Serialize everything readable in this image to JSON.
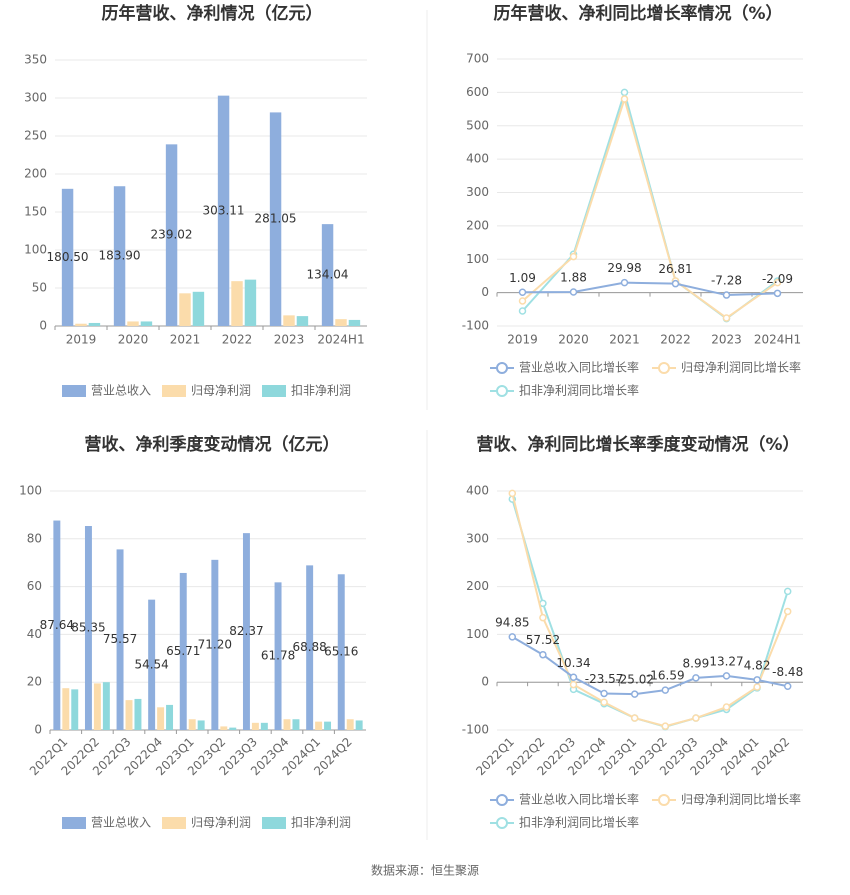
{
  "chart_data": [
    {
      "type": "bar",
      "title": "历年营收、净利情况（亿元）",
      "categories": [
        "2019",
        "2020",
        "2021",
        "2022",
        "2023",
        "2024H1"
      ],
      "series": [
        {
          "name": "营业总收入",
          "color": "#8eaedd",
          "values": [
            180.5,
            183.9,
            239.02,
            303.11,
            281.05,
            134.04
          ],
          "value_labels": [
            "180.50",
            "183.90",
            "239.02",
            "303.11",
            "281.05",
            "134.04"
          ]
        },
        {
          "name": "归母净利润",
          "color": "#fbdcab",
          "values": [
            3,
            6,
            43,
            59,
            14,
            9
          ]
        },
        {
          "name": "扣非净利润",
          "color": "#8ed8dc",
          "values": [
            4,
            6,
            45,
            61,
            13,
            8
          ]
        }
      ],
      "ylim": [
        0,
        350
      ],
      "yticks": [
        0,
        50,
        100,
        150,
        200,
        250,
        300,
        350
      ],
      "grid": true
    },
    {
      "type": "line",
      "title": "历年营收、净利同比增长率情况（%）",
      "categories": [
        "2019",
        "2020",
        "2021",
        "2022",
        "2023",
        "2024H1"
      ],
      "series": [
        {
          "name": "营业总收入同比增长率",
          "color": "#8eaedd",
          "values": [
            1.09,
            1.88,
            29.98,
            26.81,
            -7.28,
            -2.09
          ],
          "value_labels": [
            "1.09",
            "1.88",
            "29.98",
            "26.81",
            "-7.28",
            "-2.09"
          ]
        },
        {
          "name": "归母净利润同比增长率",
          "color": "#fbdcab",
          "values": [
            -25,
            108,
            580,
            35,
            -76,
            30
          ]
        },
        {
          "name": "扣非净利润同比增长率",
          "color": "#9fe0e3",
          "values": [
            -55,
            115,
            600,
            35,
            -78,
            35
          ]
        }
      ],
      "ylim": [
        -100,
        700
      ],
      "yticks": [
        -100,
        0,
        100,
        200,
        300,
        400,
        500,
        600,
        700
      ],
      "grid": true
    },
    {
      "type": "bar",
      "title": "营收、净利季度变动情况（亿元）",
      "categories": [
        "2022Q1",
        "2022Q2",
        "2022Q3",
        "2022Q4",
        "2023Q1",
        "2023Q2",
        "2023Q3",
        "2023Q4",
        "2024Q1",
        "2024Q2"
      ],
      "series": [
        {
          "name": "营业总收入",
          "color": "#8eaedd",
          "values": [
            87.64,
            85.35,
            75.57,
            54.54,
            65.71,
            71.2,
            82.37,
            61.78,
            68.88,
            65.16
          ],
          "value_labels": [
            "87.64",
            "85.35",
            "75.57",
            "54.54",
            "65.71",
            "71.20",
            "82.37",
            "61.78",
            "68.88",
            "65.16"
          ]
        },
        {
          "name": "归母净利润",
          "color": "#fbdcab",
          "values": [
            17.5,
            19.5,
            12.5,
            9.5,
            4.5,
            1.5,
            3,
            4.5,
            3.5,
            4.5
          ]
        },
        {
          "name": "扣非净利润",
          "color": "#8ed8dc",
          "values": [
            17,
            20,
            13,
            10.5,
            4,
            1,
            3,
            4.5,
            3.5,
            4
          ]
        }
      ],
      "ylim": [
        0,
        100
      ],
      "yticks": [
        0,
        20,
        40,
        60,
        80,
        100
      ],
      "grid": true
    },
    {
      "type": "line",
      "title": "营收、净利同比增长率季度变动情况（%）",
      "categories": [
        "2022Q1",
        "2022Q2",
        "2022Q3",
        "2022Q4",
        "2023Q1",
        "2023Q2",
        "2023Q3",
        "2023Q4",
        "2024Q1",
        "2024Q2"
      ],
      "series": [
        {
          "name": "营业总收入同比增长率",
          "color": "#8eaedd",
          "values": [
            94.85,
            57.52,
            10.34,
            -23.57,
            -25.02,
            -16.59,
            8.99,
            13.27,
            4.82,
            -8.48
          ],
          "value_labels": [
            "94.85",
            "57.52",
            "10.34",
            "-23.57",
            "-25.02",
            "-16.59",
            "8.99",
            "13.27",
            "4.82",
            "-8.48"
          ]
        },
        {
          "name": "归母净利润同比增长率",
          "color": "#fbdcab",
          "values": [
            395,
            135,
            -5,
            -42,
            -75,
            -92,
            -75,
            -52,
            -10,
            148
          ]
        },
        {
          "name": "扣非净利润同比增长率",
          "color": "#9fe0e3",
          "values": [
            383,
            165,
            -15,
            -45,
            -75,
            -93,
            -75,
            -57,
            -12,
            190
          ]
        }
      ],
      "ylim": [
        -100,
        400
      ],
      "yticks": [
        -100,
        0,
        100,
        200,
        300,
        400
      ],
      "grid": true
    }
  ],
  "source": "数据来源：恒生聚源"
}
